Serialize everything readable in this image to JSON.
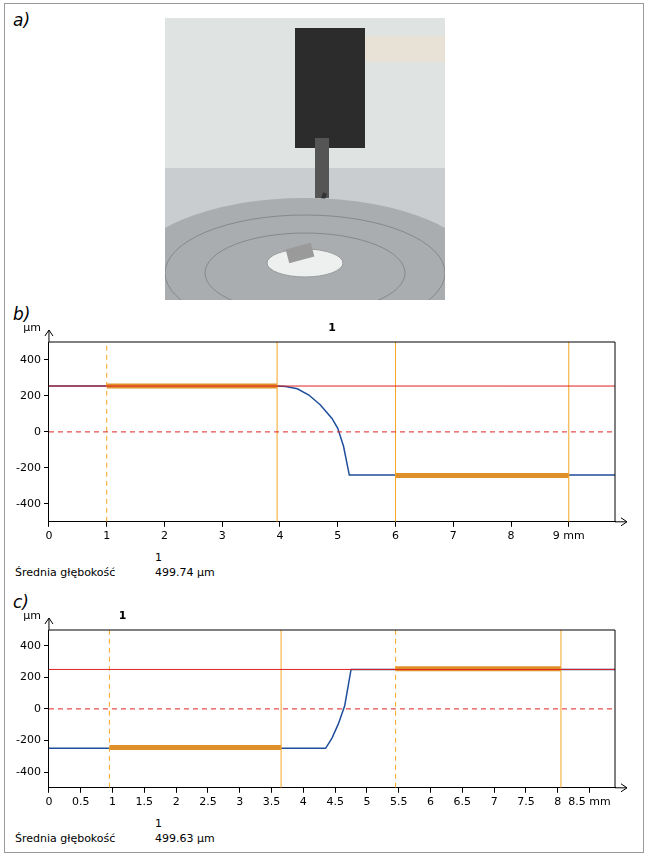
{
  "figure": {
    "panels": [
      "a)",
      "b)",
      "c)"
    ]
  },
  "chart_data": [
    {
      "type": "line",
      "title": "1",
      "y_label": "µm",
      "series": [
        {
          "color": "#1f4e9c",
          "x": [
            0,
            1,
            2,
            3,
            3.95,
            4.1,
            4.3,
            4.5,
            4.7,
            4.9,
            5.0,
            5.1,
            5.2,
            6,
            7,
            8,
            9,
            9.8
          ],
          "values": [
            255,
            255,
            255,
            255,
            255,
            253,
            240,
            205,
            150,
            75,
            20,
            -80,
            -240,
            -240,
            -240,
            -240,
            -240,
            -240
          ]
        }
      ],
      "reference_lines": [
        {
          "y": 255,
          "color": "#e02020",
          "line_style": "solid"
        },
        {
          "y": 0,
          "color": "#e02020",
          "line_style": "dashed"
        }
      ],
      "x_markers": [
        {
          "x": 1,
          "color": "#f5a623",
          "line_style": "dashed"
        },
        {
          "x": 3.95,
          "color": "#f5a623",
          "line_style": "solid"
        },
        {
          "x": 6,
          "color": "#f5a623",
          "line_style": "solid"
        },
        {
          "x": 9,
          "color": "#f5a623",
          "line_style": "solid"
        }
      ],
      "segments": [
        {
          "x": [
            1,
            3.95
          ],
          "y": 255,
          "color": "#e0902a"
        },
        {
          "x": [
            6,
            9
          ],
          "y": -242,
          "color": "#e0902a"
        }
      ],
      "xlim": [
        0,
        9.8
      ],
      "xticks": [
        0,
        1,
        2,
        3,
        4,
        5,
        6,
        7,
        8,
        {
          "value": 9,
          "label": "9 mm"
        }
      ],
      "ylim": [
        -500,
        500
      ],
      "yticks": [
        -400,
        -200,
        0,
        200,
        400
      ],
      "grid": false,
      "summary": {
        "header": "1",
        "label": "Średnia głębokość",
        "value": "499.74 µm"
      }
    },
    {
      "type": "line",
      "title": "1",
      "y_label": "µm",
      "series": [
        {
          "color": "#1f4e9c",
          "x": [
            0,
            1,
            2,
            3,
            4,
            4.35,
            4.45,
            4.55,
            4.65,
            4.75,
            5,
            6,
            7,
            8,
            8.9
          ],
          "values": [
            -250,
            -250,
            -250,
            -250,
            -250,
            -250,
            -185,
            -95,
            20,
            250,
            250,
            250,
            250,
            250,
            250
          ]
        }
      ],
      "reference_lines": [
        {
          "y": 250,
          "color": "#e02020",
          "line_style": "solid"
        },
        {
          "y": 0,
          "color": "#e02020",
          "line_style": "dashed"
        }
      ],
      "x_markers": [
        {
          "x": 0.95,
          "color": "#f5a623",
          "line_style": "dashed"
        },
        {
          "x": 3.65,
          "color": "#f5a623",
          "line_style": "solid"
        },
        {
          "x": 5.45,
          "color": "#f5a623",
          "line_style": "dashed"
        },
        {
          "x": 8.05,
          "color": "#f5a623",
          "line_style": "solid"
        }
      ],
      "segments": [
        {
          "x": [
            0.95,
            3.65
          ],
          "y": -245,
          "color": "#e0902a"
        },
        {
          "x": [
            5.45,
            8.05
          ],
          "y": 255,
          "color": "#e0902a"
        }
      ],
      "xlim": [
        0,
        8.9
      ],
      "xticks": [
        0,
        0.5,
        1,
        1.5,
        2,
        2.5,
        3,
        3.5,
        4,
        4.5,
        5,
        5.5,
        6,
        6.5,
        7,
        7.5,
        8,
        {
          "value": 8.5,
          "label": "8.5 mm"
        }
      ],
      "ylim": [
        -500,
        500
      ],
      "yticks": [
        -400,
        -200,
        0,
        200,
        400
      ],
      "grid": false,
      "summary": {
        "header": "1",
        "label": "Średnia głębokość",
        "value": "499.63 µm"
      }
    }
  ]
}
